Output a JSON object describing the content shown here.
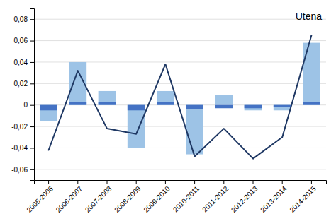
{
  "chart_data": {
    "type": "bar",
    "categories": [
      "2005-2006",
      "2006-2007",
      "2007-2008",
      "2008-2009",
      "2009-2010",
      "2010-2011",
      "2011-2012",
      "2012-2013",
      "2013-2014",
      "2014-2015"
    ],
    "series": [
      {
        "type": "bar",
        "color": "#9DC3E6",
        "values": [
          -0.015,
          0.04,
          0.013,
          -0.04,
          0.013,
          -0.046,
          0.009,
          -0.005,
          -0.005,
          0.058
        ]
      },
      {
        "type": "bar",
        "color": "#4472C4",
        "values": [
          -0.005,
          0.003,
          0.003,
          -0.005,
          0.003,
          -0.004,
          -0.003,
          -0.003,
          -0.002,
          0.003
        ]
      },
      {
        "type": "line",
        "color": "#1F3864",
        "values": [
          -0.042,
          0.032,
          -0.022,
          -0.027,
          0.038,
          -0.048,
          -0.022,
          -0.05,
          -0.03,
          0.065
        ]
      }
    ],
    "annotation": "Utena",
    "ylim": [
      -0.07,
      0.09
    ],
    "yticks": [
      {
        "value": -0.06,
        "label": "-0,06"
      },
      {
        "value": -0.04,
        "label": "-0,04"
      },
      {
        "value": -0.02,
        "label": "-0,02"
      },
      0,
      {
        "value": 0.02,
        "label": "0,02"
      },
      {
        "value": 0.04,
        "label": "0,04"
      },
      {
        "value": 0.06,
        "label": "0,06"
      },
      {
        "value": 0.08,
        "label": "0,08"
      }
    ],
    "grid": true
  }
}
